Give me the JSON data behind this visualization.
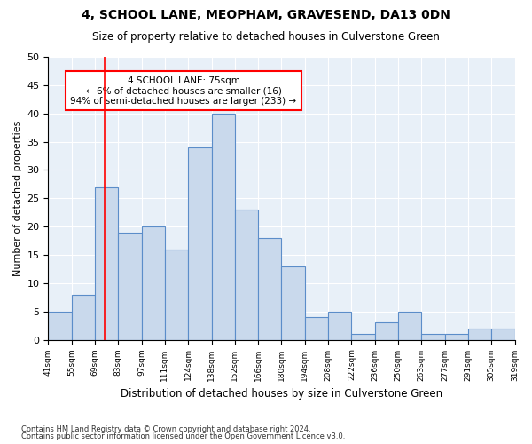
{
  "title1": "4, SCHOOL LANE, MEOPHAM, GRAVESEND, DA13 0DN",
  "title2": "Size of property relative to detached houses in Culverstone Green",
  "xlabel": "Distribution of detached houses by size in Culverstone Green",
  "ylabel": "Number of detached properties",
  "footnote1": "Contains HM Land Registry data © Crown copyright and database right 2024.",
  "footnote2": "Contains public sector information licensed under the Open Government Licence v3.0.",
  "bar_labels": [
    "41sqm",
    "55sqm",
    "69sqm",
    "83sqm",
    "97sqm",
    "111sqm",
    "124sqm",
    "138sqm",
    "152sqm",
    "166sqm",
    "180sqm",
    "194sqm",
    "208sqm",
    "222sqm",
    "236sqm",
    "250sqm",
    "263sqm",
    "277sqm",
    "291sqm",
    "305sqm",
    "319sqm"
  ],
  "bar_heights": [
    5,
    8,
    27,
    19,
    20,
    16,
    34,
    40,
    23,
    18,
    13,
    4,
    5,
    1,
    3,
    5,
    1,
    1,
    2,
    2
  ],
  "bar_color": "#c9d9ec",
  "bar_edge_color": "#5b8dc9",
  "bg_color": "#e8f0f8",
  "grid_color": "#ffffff",
  "annotation_box_text": "4 SCHOOL LANE: 75sqm\n← 6% of detached houses are smaller (16)\n94% of semi-detached houses are larger (233) →",
  "ylim": [
    0,
    50
  ],
  "yticks": [
    0,
    5,
    10,
    15,
    20,
    25,
    30,
    35,
    40,
    45,
    50
  ]
}
